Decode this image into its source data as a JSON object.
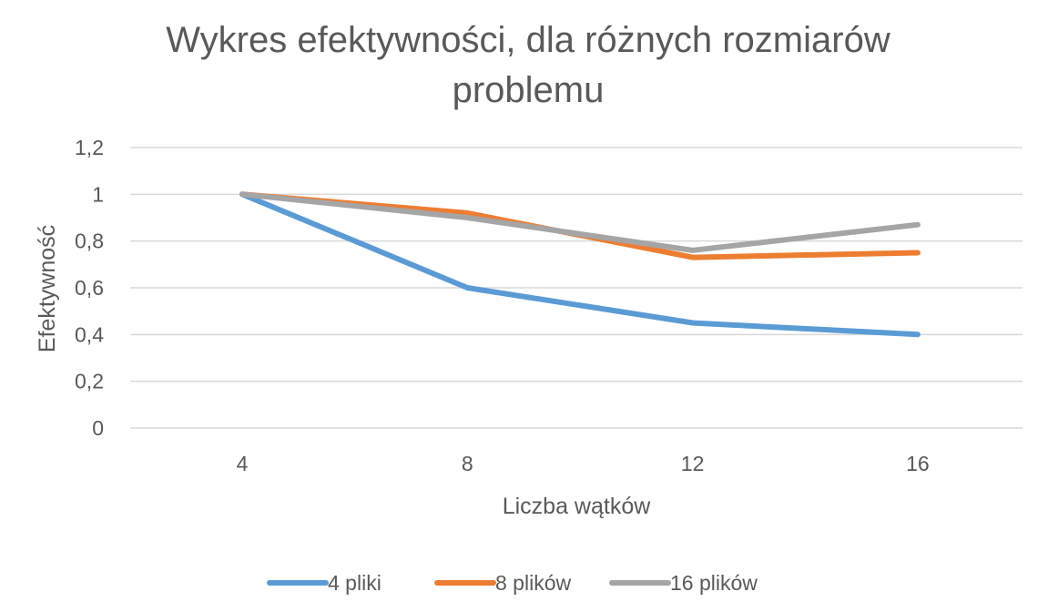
{
  "chart_data": {
    "type": "line",
    "title_lines": [
      "Wykres efektywności, dla różnych rozmiarów",
      "problemu"
    ],
    "xlabel": "Liczba wątków",
    "ylabel": "Efektywność",
    "categories": [
      "4",
      "8",
      "12",
      "16"
    ],
    "ylim": [
      0,
      1.2
    ],
    "yticks": [
      "0",
      "0,2",
      "0,4",
      "0,6",
      "0,8",
      "1",
      "1,2"
    ],
    "ytick_values": [
      0,
      0.2,
      0.4,
      0.6,
      0.8,
      1.0,
      1.2
    ],
    "grid": true,
    "legend_position": "bottom",
    "series": [
      {
        "name": "4 pliki",
        "color": "#5b9bd5",
        "values": [
          1.0,
          0.6,
          0.45,
          0.4
        ]
      },
      {
        "name": "8 plików",
        "color": "#ed7d31",
        "values": [
          1.0,
          0.92,
          0.73,
          0.75
        ]
      },
      {
        "name": "16 plików",
        "color": "#a5a5a5",
        "values": [
          1.0,
          0.9,
          0.76,
          0.87
        ]
      }
    ]
  }
}
